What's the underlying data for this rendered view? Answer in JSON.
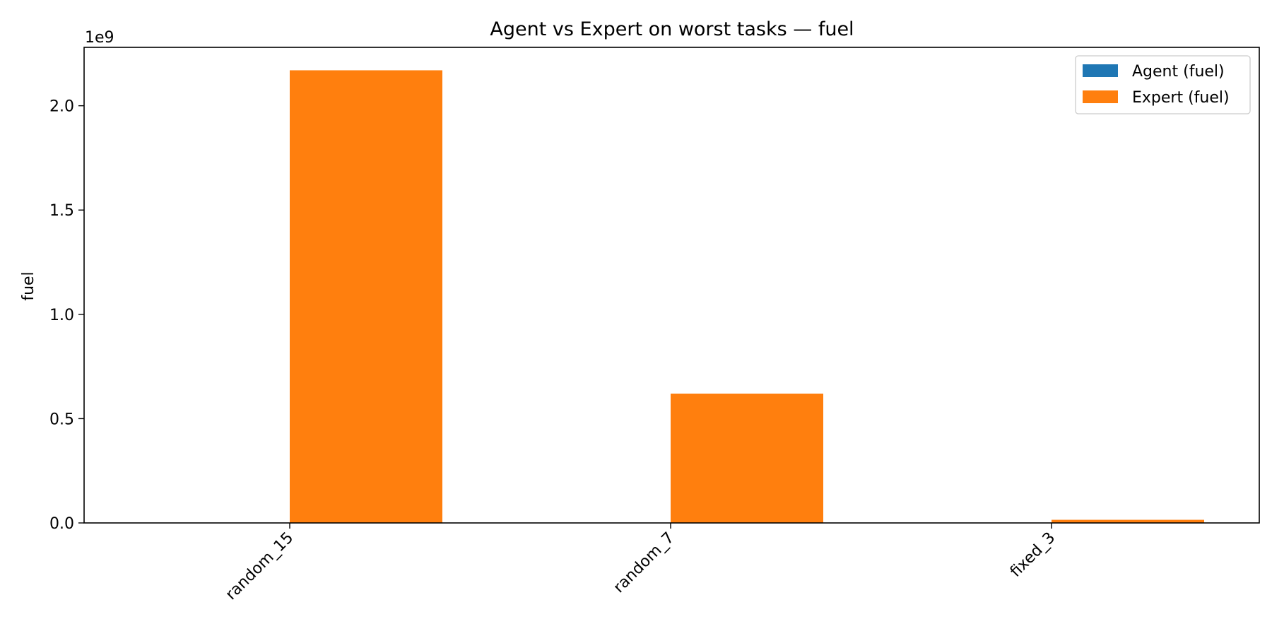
{
  "chart_data": {
    "type": "bar",
    "title": "Agent vs Expert on worst tasks — fuel",
    "xlabel": "",
    "ylabel": "fuel",
    "offset_label": "1e9",
    "categories": [
      "random_15",
      "random_7",
      "fixed_3"
    ],
    "series": [
      {
        "name": "Agent (fuel)",
        "color": "#1f77b4",
        "values": [
          0,
          0,
          0
        ]
      },
      {
        "name": "Expert (fuel)",
        "color": "#ff7f0e",
        "values": [
          2170000000.0,
          620000000.0,
          15000000.0
        ]
      }
    ],
    "ylim": [
      0,
      2280000000.0
    ],
    "yticks": [
      0,
      500000000.0,
      1000000000.0,
      1500000000.0,
      2000000000.0
    ],
    "ytick_labels": [
      "0.0",
      "0.5",
      "1.0",
      "1.5",
      "2.0"
    ],
    "grid": false,
    "legend_position": "top-right"
  }
}
